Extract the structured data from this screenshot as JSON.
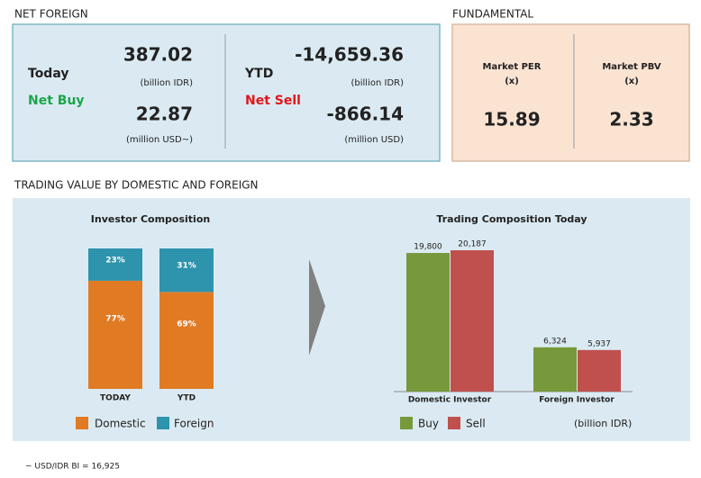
{
  "net_foreign": {
    "title": "NET FOREIGN",
    "today": {
      "label": "Today",
      "status": "Net Buy",
      "idr": "387.02",
      "idr_unit": "(billion IDR)",
      "usd": "22.87",
      "usd_unit": "(million USD~)"
    },
    "ytd": {
      "label": "YTD",
      "status": "Net Sell",
      "idr": "-14,659.36",
      "idr_unit": "(billion IDR)",
      "usd": "-866.14",
      "usd_unit": "(million USD)"
    }
  },
  "fundamental": {
    "title": "FUNDAMENTAL",
    "per": {
      "label": "Market PER",
      "unit": "(x)",
      "value": "15.89"
    },
    "pbv": {
      "label": "Market PBV",
      "unit": "(x)",
      "value": "2.33"
    }
  },
  "trading_title": "TRADING VALUE BY DOMESTIC AND FOREIGN",
  "chart_data": [
    {
      "type": "stacked_bar",
      "title": "Investor Composition",
      "categories": [
        "TODAY",
        "YTD"
      ],
      "series": [
        {
          "name": "Domestic",
          "color": "#e07b24",
          "values": [
            77,
            69
          ],
          "value_labels": [
            "77%",
            "69%"
          ]
        },
        {
          "name": "Foreign",
          "color": "#2e93ad",
          "values": [
            23,
            31
          ],
          "value_labels": [
            "23%",
            "31%"
          ]
        }
      ]
    },
    {
      "type": "bar",
      "title": "Trading Composition Today",
      "categories": [
        "Domestic Investor",
        "Foreign Investor"
      ],
      "series": [
        {
          "name": "Buy",
          "color": "#77993b",
          "values": [
            19800,
            6324
          ],
          "value_labels": [
            "19,800",
            "6,324"
          ]
        },
        {
          "name": "Sell",
          "color": "#c0504d",
          "values": [
            20187,
            5937
          ],
          "value_labels": [
            "20,187",
            "5,937"
          ]
        }
      ],
      "unit_label": "(billion IDR)"
    }
  ],
  "footnote": "~ USD/IDR BI = 16,925"
}
